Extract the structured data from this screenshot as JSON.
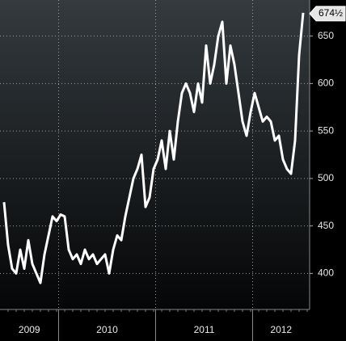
{
  "chart_data": {
    "type": "line",
    "color": "#ffffff",
    "grid": true,
    "x": [
      "2009",
      "2009",
      "2009",
      "2009",
      "2009",
      "2009",
      "2009",
      "2009",
      "2009",
      "2009",
      "2009",
      "2009",
      "2009",
      "2009",
      "2010",
      "2010",
      "2010",
      "2010",
      "2010",
      "2010",
      "2010",
      "2010",
      "2010",
      "2010",
      "2010",
      "2010",
      "2010",
      "2010",
      "2010",
      "2010",
      "2010",
      "2010",
      "2010",
      "2010",
      "2010",
      "2010",
      "2010",
      "2010",
      "2011",
      "2011",
      "2011",
      "2011",
      "2011",
      "2011",
      "2011",
      "2011",
      "2011",
      "2011",
      "2011",
      "2011",
      "2011",
      "2011",
      "2011",
      "2011",
      "2011",
      "2011",
      "2011",
      "2011",
      "2011",
      "2011",
      "2011",
      "2011",
      "2012",
      "2012",
      "2012",
      "2012",
      "2012",
      "2012",
      "2012",
      "2012",
      "2012",
      "2012",
      "2012",
      "2012",
      "2012"
    ],
    "values": [
      475,
      430,
      405,
      400,
      425,
      405,
      435,
      410,
      400,
      390,
      420,
      440,
      460,
      455,
      462,
      460,
      425,
      415,
      420,
      410,
      425,
      415,
      420,
      410,
      415,
      420,
      400,
      425,
      440,
      435,
      460,
      480,
      500,
      510,
      525,
      470,
      480,
      510,
      520,
      540,
      510,
      550,
      520,
      560,
      590,
      600,
      590,
      570,
      600,
      580,
      640,
      600,
      620,
      650,
      665,
      600,
      640,
      620,
      590,
      560,
      545,
      570,
      590,
      575,
      560,
      565,
      560,
      540,
      545,
      520,
      510,
      505,
      540,
      630,
      674.5
    ],
    "value_labels": [
      null,
      null,
      null,
      null,
      null,
      null,
      null,
      null,
      null,
      null,
      null,
      null,
      null,
      null,
      null,
      null,
      null,
      null,
      null,
      null,
      null,
      null,
      null,
      null,
      null,
      null,
      null,
      null,
      null,
      null,
      null,
      null,
      null,
      null,
      null,
      null,
      null,
      null,
      null,
      null,
      null,
      null,
      null,
      null,
      null,
      null,
      null,
      null,
      null,
      null,
      null,
      null,
      null,
      null,
      null,
      null,
      null,
      null,
      null,
      null,
      null,
      null,
      null,
      null,
      null,
      null,
      null,
      null,
      null,
      null,
      null,
      null,
      null,
      null,
      "674½"
    ],
    "ylim": [
      362,
      688
    ],
    "yticks": [
      400,
      450,
      500,
      550,
      600,
      650
    ]
  }
}
